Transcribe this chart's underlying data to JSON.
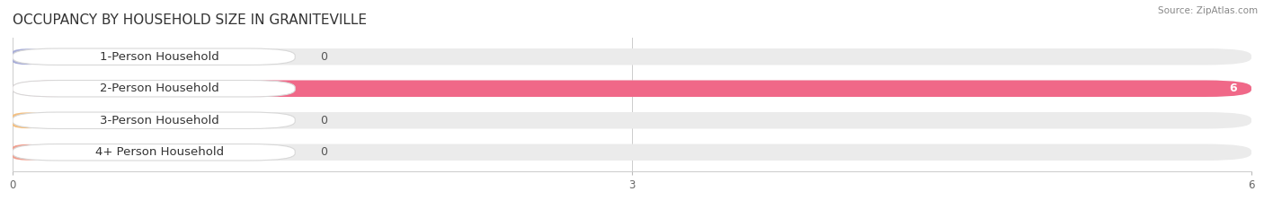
{
  "title": "OCCUPANCY BY HOUSEHOLD SIZE IN GRANITEVILLE",
  "source": "Source: ZipAtlas.com",
  "categories": [
    "1-Person Household",
    "2-Person Household",
    "3-Person Household",
    "4+ Person Household"
  ],
  "values": [
    0,
    6,
    0,
    0
  ],
  "bar_colors": [
    "#a8aed8",
    "#f06888",
    "#f5c080",
    "#f0a090"
  ],
  "label_bg_color": "#ffffff",
  "background_color": "#ffffff",
  "bar_bg_color": "#ebebeb",
  "xlim": [
    0,
    6
  ],
  "xticks": [
    0,
    3,
    6
  ],
  "bar_height": 0.52,
  "label_fontsize": 9.5,
  "title_fontsize": 11,
  "value_label_fontsize": 9,
  "rounding_size": 0.22
}
